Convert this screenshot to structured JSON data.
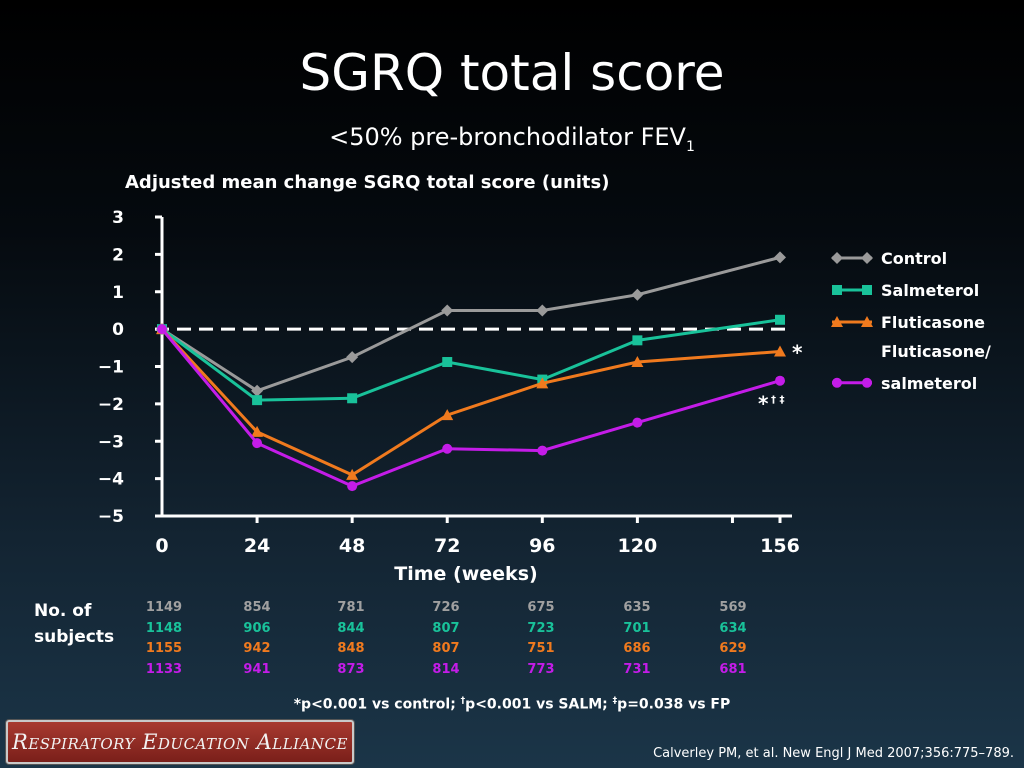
{
  "slide": {
    "title": "SGRQ total score",
    "subtitle_main": "<50% pre-bronchodilator FEV",
    "subtitle_sub": "1",
    "no_of_subjects_label_line1": "No. of",
    "no_of_subjects_label_line2": "subjects",
    "footnote_p1": "*p<0.001 vs control; ",
    "footnote_sup1": "†",
    "footnote_p2": "p<0.001 vs SALM; ",
    "footnote_sup2": "‡",
    "footnote_p3": "p=0.038 vs FP",
    "logo_text": "Respiratory Education Alliance",
    "citation": "Calverley PM, et al. New Engl J Med 2007;356:775–789."
  },
  "chart_data": {
    "type": "line",
    "title": "SGRQ total score",
    "ylabel": "Adjusted mean change SGRQ total score (units)",
    "xlabel": "Time (weeks)",
    "x": [
      0,
      24,
      48,
      72,
      96,
      120,
      156
    ],
    "x_tick_labels": [
      "0",
      "24",
      "48",
      "72",
      "96",
      "120",
      "156"
    ],
    "ylim": [
      -5,
      3
    ],
    "y_ticks": [
      3,
      2,
      1,
      0,
      -1,
      -2,
      -3,
      -4,
      -5
    ],
    "y_tick_labels": [
      "3",
      "2",
      "1",
      "0",
      "−1",
      "−2",
      "−3",
      "−4",
      "−5"
    ],
    "reference_line": 0,
    "legend_position": "right",
    "series": [
      {
        "name": "Control",
        "color": "#9a9a9a",
        "marker": "diamond",
        "values": [
          0,
          -1.65,
          -0.75,
          0.5,
          0.5,
          0.92,
          1.92
        ]
      },
      {
        "name": "Salmeterol",
        "color": "#19c29a",
        "marker": "square",
        "values": [
          0,
          -1.9,
          -1.85,
          -0.88,
          -1.35,
          -0.3,
          0.25
        ]
      },
      {
        "name": "Fluticasone",
        "color": "#f07a1e",
        "marker": "triangle",
        "values": [
          0,
          -2.75,
          -3.9,
          -2.3,
          -1.45,
          -0.88,
          -0.6
        ]
      },
      {
        "name": "Fluticasone/ salmeterol",
        "legend_line1": "Fluticasone/",
        "legend_line2": "salmeterol",
        "color": "#c41ce8",
        "marker": "circle",
        "values": [
          0,
          -3.05,
          -4.2,
          -3.2,
          -3.25,
          -2.5,
          -1.38
        ]
      }
    ],
    "annotations": [
      {
        "text": "*",
        "series": "Fluticasone"
      },
      {
        "text": "*",
        "sup": "† ‡",
        "series": "Fluticasone/ salmeterol"
      }
    ],
    "subjects": {
      "Control": [
        "1149",
        "854",
        "781",
        "726",
        "675",
        "635",
        "569"
      ],
      "Salmeterol": [
        "1148",
        "906",
        "844",
        "807",
        "723",
        "701",
        "634"
      ],
      "Fluticasone": [
        "1155",
        "942",
        "848",
        "807",
        "751",
        "686",
        "629"
      ],
      "Fluticasone/ salmeterol": [
        "1133",
        "941",
        "873",
        "814",
        "773",
        "731",
        "681"
      ]
    },
    "subjects_colors": [
      "#a0a0a0",
      "#19c29a",
      "#f07a1e",
      "#c41ce8"
    ]
  }
}
